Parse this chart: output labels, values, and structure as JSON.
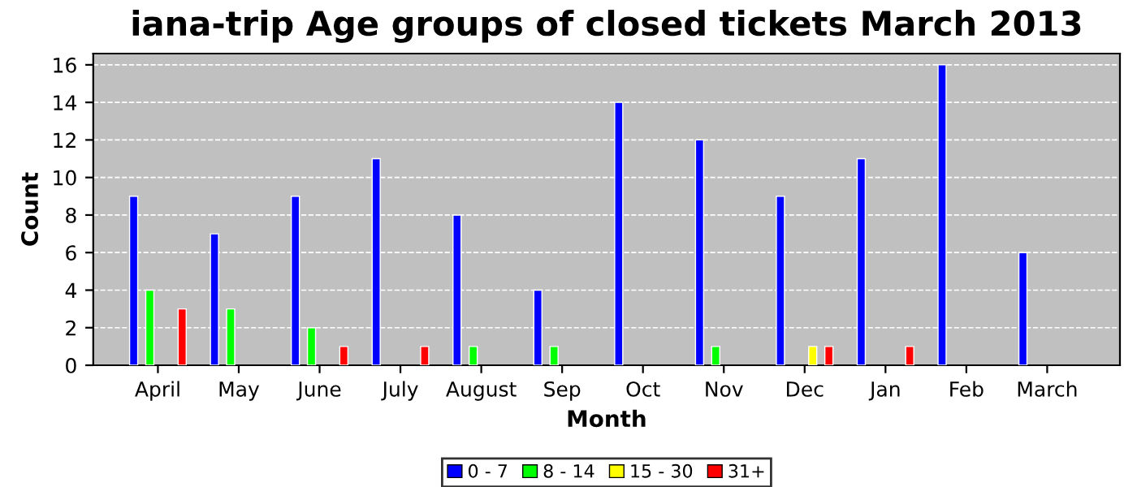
{
  "chart_data": {
    "type": "bar",
    "title": "iana-trip Age groups of closed tickets March 2013",
    "xlabel": "Month",
    "ylabel": "Count",
    "categories": [
      "April",
      "May",
      "June",
      "July",
      "August",
      "Sep",
      "Oct",
      "Nov",
      "Dec",
      "Jan",
      "Feb",
      "March"
    ],
    "series": [
      {
        "name": "0 - 7",
        "color": "#0000ff",
        "values": [
          9,
          7,
          9,
          11,
          8,
          4,
          14,
          12,
          9,
          11,
          16,
          6
        ]
      },
      {
        "name": "8 - 14",
        "color": "#00ff00",
        "values": [
          4,
          3,
          2,
          0,
          1,
          1,
          0,
          1,
          0,
          0,
          0,
          0
        ]
      },
      {
        "name": "15 - 30",
        "color": "#ffff00",
        "values": [
          0,
          0,
          0,
          0,
          0,
          0,
          0,
          0,
          1,
          0,
          0,
          0
        ]
      },
      {
        "name": "31+",
        "color": "#ff0000",
        "values": [
          3,
          0,
          1,
          1,
          0,
          0,
          0,
          0,
          1,
          1,
          0,
          0
        ]
      }
    ],
    "ylim": [
      0,
      16.6
    ],
    "yticks": [
      0,
      2,
      4,
      6,
      8,
      10,
      12,
      14,
      16
    ],
    "grid": "y",
    "legend": "bottom"
  }
}
